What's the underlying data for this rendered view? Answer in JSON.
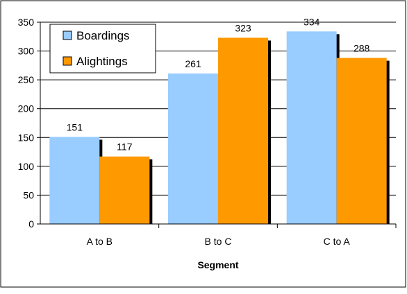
{
  "chart_data": {
    "type": "bar",
    "title": "",
    "xlabel": "Segment",
    "ylabel": "",
    "categories": [
      "A to B",
      "B to C",
      "C to A"
    ],
    "series": [
      {
        "name": "Boardings",
        "values": [
          151,
          261,
          334
        ],
        "color": "#99ccff"
      },
      {
        "name": "Alightings",
        "values": [
          117,
          323,
          288
        ],
        "color": "#ff9900"
      }
    ],
    "ylim": [
      0,
      350
    ],
    "yticks": [
      "0",
      "50",
      "100",
      "150",
      "200",
      "250",
      "300",
      "350"
    ],
    "grid": true,
    "legend": "top-left"
  }
}
